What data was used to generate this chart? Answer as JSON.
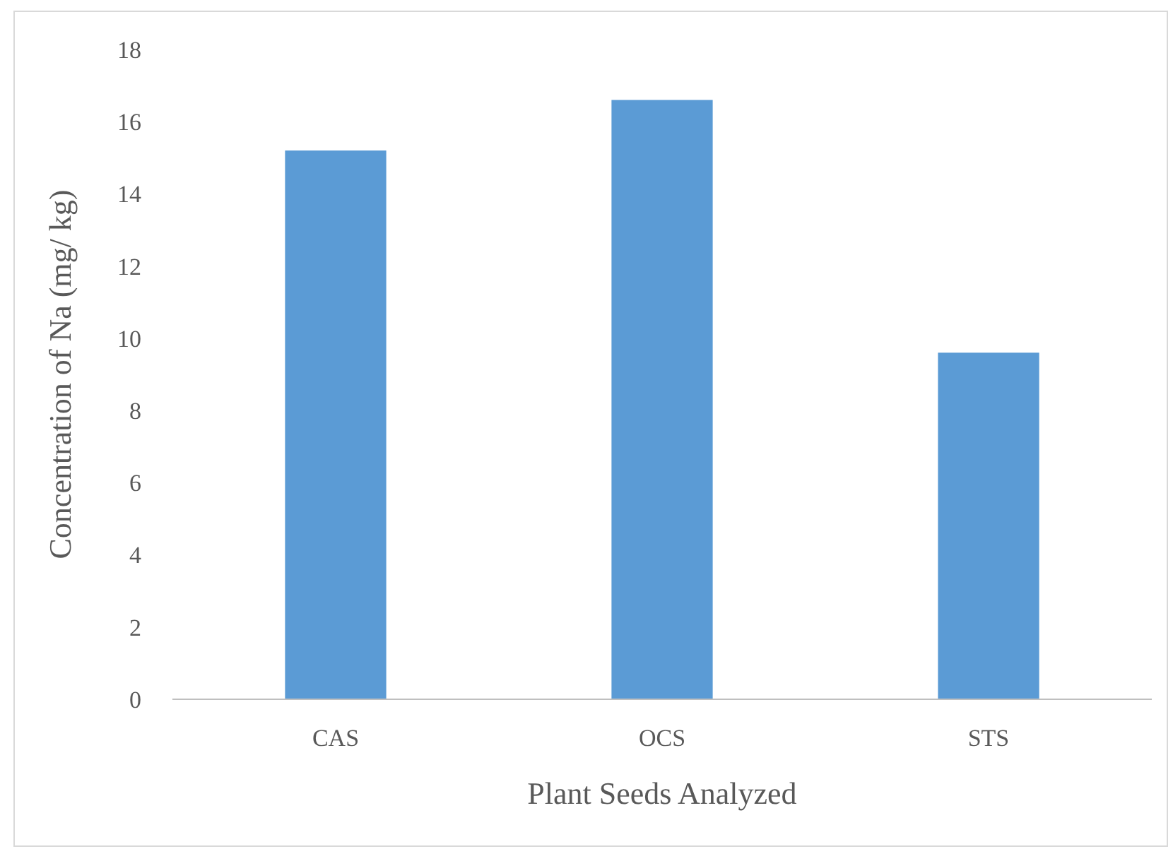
{
  "chart_data": {
    "type": "bar",
    "xlabel": "Plant Seeds Analyzed",
    "ylabel": "Concentration of  Na (mg/ kg)",
    "categories": [
      "CAS",
      "OCS",
      "STS"
    ],
    "values": [
      15.2,
      16.6,
      9.6
    ],
    "color": "#5b9bd5",
    "ylim": [
      0,
      18
    ],
    "yticks": [
      0,
      2,
      4,
      6,
      8,
      10,
      12,
      14,
      16,
      18
    ],
    "grid": false
  }
}
